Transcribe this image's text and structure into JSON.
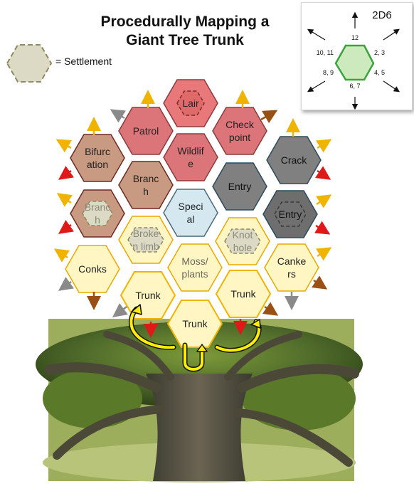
{
  "title_line1": "Procedurally Mapping a",
  "title_line2": "Giant Tree Trunk",
  "legend": {
    "label": "= Settlement"
  },
  "dice": {
    "label": "2D6",
    "up": "12",
    "upper_right": "2, 3",
    "lower_right": "4, 5",
    "down": "6, 7",
    "lower_left": "8, 9",
    "upper_left": "10, 11"
  },
  "colors": {
    "lair": "#e8787a",
    "red_zone": "#db7579",
    "brown": "#c99a82",
    "gray": "#808080",
    "special": "#d5e8f0",
    "yellow": "#fff6c4",
    "settlement": "#dcdac4"
  },
  "hexes": {
    "lair": {
      "label": "Lair",
      "settlement": true
    },
    "patrol": {
      "label": "Patrol"
    },
    "checkpoint": {
      "label1": "Check",
      "label2": "point"
    },
    "wildlife": {
      "label1": "Wildlif",
      "label2": "e"
    },
    "bifurcation": {
      "label1": "Bifurc",
      "label2": "ation"
    },
    "branch_upper": {
      "label1": "Branc",
      "label2": "h"
    },
    "crack": {
      "label": "Crack"
    },
    "entry_center": {
      "label": "Entry"
    },
    "branch_lower": {
      "label1": "Branc",
      "label2": "h",
      "settlement": true
    },
    "special": {
      "label1": "Speci",
      "label2": "al"
    },
    "entry_right": {
      "label": "Entry",
      "settlement": true
    },
    "broken_limb": {
      "label1": "Broke",
      "label2": "n limb",
      "settlement": true
    },
    "knot_hole": {
      "label1": "Knot",
      "label2": "hole",
      "settlement": true
    },
    "conks": {
      "label": "Conks"
    },
    "moss_plants": {
      "label1": "Moss/",
      "label2": "plants"
    },
    "cankers": {
      "label1": "Canke",
      "label2": "rs"
    },
    "trunk_left": {
      "label": "Trunk"
    },
    "trunk_right": {
      "label": "Trunk"
    },
    "trunk_bottom": {
      "label": "Trunk"
    }
  }
}
